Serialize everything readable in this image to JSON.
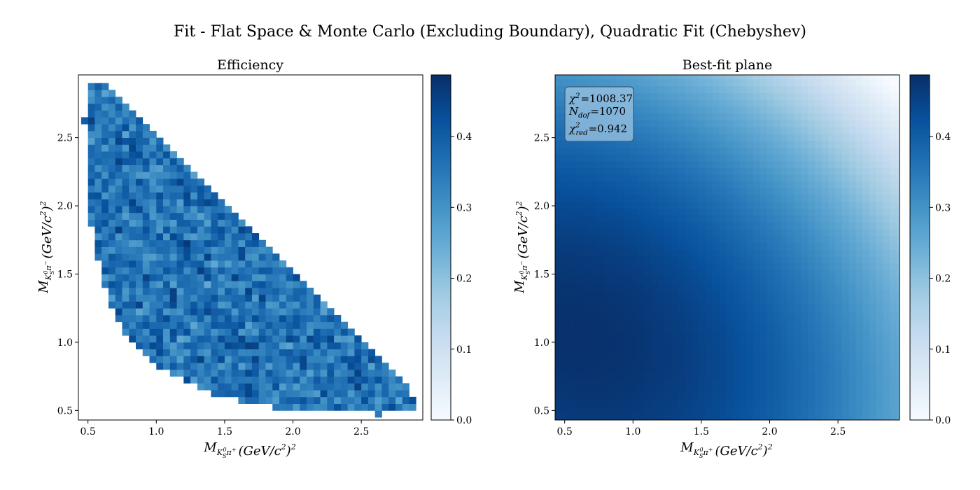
{
  "figure": {
    "suptitle": "Fit - Flat Space & Monte Carlo (Excluding Boundary), Quadratic Fit (Chebyshev)"
  },
  "chart_data": [
    {
      "type": "heatmap",
      "title": "Efficiency",
      "xlabel_base": "M",
      "xlabel_sub": "K",
      "xlabel_subsub": "S",
      "xlabel_subsup": "0",
      "xlabel_subtail": "π",
      "xlabel_subtailsup": "+",
      "xlabel_unit": "(GeV/c",
      "xlabel_unitsup": "2",
      "xlabel_unitclose": ")",
      "xlabel_outsup": "2",
      "ylabel_base": "M",
      "ylabel_sub": "K",
      "ylabel_subsub": "S",
      "ylabel_subsup": "0",
      "ylabel_subtail": "π",
      "ylabel_subtailsup": "−",
      "ylabel_unit": "(GeV/c",
      "ylabel_unitsup": "2",
      "ylabel_unitclose": ")",
      "ylabel_outsup": "2",
      "xlim": [
        0.43,
        2.95
      ],
      "ylim": [
        0.43,
        2.96
      ],
      "xticks": [
        0.5,
        1.0,
        1.5,
        2.0,
        2.5
      ],
      "xtick_labels": [
        "0.5",
        "1.0",
        "1.5",
        "2.0",
        "2.5"
      ],
      "yticks": [
        0.5,
        1.0,
        1.5,
        2.0,
        2.5
      ],
      "ytick_labels": [
        "0.5",
        "1.0",
        "1.5",
        "2.0",
        "2.5"
      ],
      "grid": false,
      "colormap": "Blues",
      "vmin": 0.0,
      "vmax": 0.487,
      "colorbar_ticks": [
        0.0,
        0.1,
        0.2,
        0.3,
        0.4
      ],
      "colorbar_tick_labels": [
        "0.0",
        "0.1",
        "0.2",
        "0.3",
        "0.4"
      ],
      "bin_width": 0.05,
      "x_first_bin_center": 0.475,
      "y_first_bin_center": 0.475,
      "mean_efficiency": 0.36,
      "row_x_ranges": [
        {
          "y": 0.475,
          "xmin": 2.6,
          "xmax": 2.65
        },
        {
          "y": 0.525,
          "xmin": 1.85,
          "xmax": 2.9
        },
        {
          "y": 0.575,
          "xmin": 1.6,
          "xmax": 2.9
        },
        {
          "y": 0.625,
          "xmin": 1.4,
          "xmax": 2.85
        },
        {
          "y": 0.675,
          "xmin": 1.3,
          "xmax": 2.85
        },
        {
          "y": 0.725,
          "xmin": 1.2,
          "xmax": 2.8
        },
        {
          "y": 0.775,
          "xmin": 1.1,
          "xmax": 2.75
        },
        {
          "y": 0.825,
          "xmin": 1.0,
          "xmax": 2.7
        },
        {
          "y": 0.875,
          "xmin": 0.95,
          "xmax": 2.65
        },
        {
          "y": 0.925,
          "xmin": 0.9,
          "xmax": 2.6
        },
        {
          "y": 0.975,
          "xmin": 0.85,
          "xmax": 2.55
        },
        {
          "y": 1.025,
          "xmin": 0.8,
          "xmax": 2.5
        },
        {
          "y": 1.075,
          "xmin": 0.75,
          "xmax": 2.45
        },
        {
          "y": 1.125,
          "xmin": 0.75,
          "xmax": 2.4
        },
        {
          "y": 1.175,
          "xmin": 0.7,
          "xmax": 2.35
        },
        {
          "y": 1.225,
          "xmin": 0.7,
          "xmax": 2.3
        },
        {
          "y": 1.275,
          "xmin": 0.65,
          "xmax": 2.25
        },
        {
          "y": 1.325,
          "xmin": 0.65,
          "xmax": 2.2
        },
        {
          "y": 1.375,
          "xmin": 0.65,
          "xmax": 2.15
        },
        {
          "y": 1.425,
          "xmin": 0.6,
          "xmax": 2.1
        },
        {
          "y": 1.475,
          "xmin": 0.6,
          "xmax": 2.05
        },
        {
          "y": 1.525,
          "xmin": 0.6,
          "xmax": 2.0
        },
        {
          "y": 1.575,
          "xmin": 0.6,
          "xmax": 1.95
        },
        {
          "y": 1.625,
          "xmin": 0.55,
          "xmax": 1.9
        },
        {
          "y": 1.675,
          "xmin": 0.55,
          "xmax": 1.85
        },
        {
          "y": 1.725,
          "xmin": 0.55,
          "xmax": 1.8
        },
        {
          "y": 1.775,
          "xmin": 0.55,
          "xmax": 1.75
        },
        {
          "y": 1.825,
          "xmin": 0.55,
          "xmax": 1.7
        },
        {
          "y": 1.875,
          "xmin": 0.5,
          "xmax": 1.65
        },
        {
          "y": 1.925,
          "xmin": 0.5,
          "xmax": 1.6
        },
        {
          "y": 1.975,
          "xmin": 0.5,
          "xmax": 1.55
        },
        {
          "y": 2.025,
          "xmin": 0.5,
          "xmax": 1.5
        },
        {
          "y": 2.075,
          "xmin": 0.5,
          "xmax": 1.45
        },
        {
          "y": 2.125,
          "xmin": 0.5,
          "xmax": 1.4
        },
        {
          "y": 2.175,
          "xmin": 0.5,
          "xmax": 1.35
        },
        {
          "y": 2.225,
          "xmin": 0.5,
          "xmax": 1.3
        },
        {
          "y": 2.275,
          "xmin": 0.5,
          "xmax": 1.25
        },
        {
          "y": 2.325,
          "xmin": 0.5,
          "xmax": 1.2
        },
        {
          "y": 2.375,
          "xmin": 0.5,
          "xmax": 1.15
        },
        {
          "y": 2.425,
          "xmin": 0.5,
          "xmax": 1.1
        },
        {
          "y": 2.475,
          "xmin": 0.5,
          "xmax": 1.05
        },
        {
          "y": 2.525,
          "xmin": 0.5,
          "xmax": 1.0
        },
        {
          "y": 2.575,
          "xmin": 0.5,
          "xmax": 0.95
        },
        {
          "y": 2.625,
          "xmin": 0.45,
          "xmax": 0.9
        },
        {
          "y": 2.675,
          "xmin": 0.5,
          "xmax": 0.85
        },
        {
          "y": 2.725,
          "xmin": 0.5,
          "xmax": 0.8
        },
        {
          "y": 2.775,
          "xmin": 0.5,
          "xmax": 0.75
        },
        {
          "y": 2.825,
          "xmin": 0.5,
          "xmax": 0.7
        },
        {
          "y": 2.875,
          "xmin": 0.5,
          "xmax": 0.65
        }
      ]
    },
    {
      "type": "heatmap",
      "title": "Best-fit plane",
      "xlabel_base": "M",
      "xlabel_sub": "K",
      "xlabel_subsub": "S",
      "xlabel_subsup": "0",
      "xlabel_subtail": "π",
      "xlabel_subtailsup": "+",
      "xlabel_unit": "(GeV/c",
      "xlabel_unitsup": "2",
      "xlabel_unitclose": ")",
      "xlabel_outsup": "2",
      "ylabel_base": "M",
      "ylabel_sub": "K",
      "ylabel_subsub": "S",
      "ylabel_subsup": "0",
      "ylabel_subtail": "π",
      "ylabel_subtailsup": "−",
      "ylabel_unit": "(GeV/c",
      "ylabel_unitsup": "2",
      "ylabel_unitclose": ")",
      "ylabel_outsup": "2",
      "xlim": [
        0.43,
        2.95
      ],
      "ylim": [
        0.43,
        2.96
      ],
      "xticks": [
        0.5,
        1.0,
        1.5,
        2.0,
        2.5
      ],
      "xtick_labels": [
        "0.5",
        "1.0",
        "1.5",
        "2.0",
        "2.5"
      ],
      "yticks": [
        0.5,
        1.0,
        1.5,
        2.0,
        2.5
      ],
      "ytick_labels": [
        "0.5",
        "1.0",
        "1.5",
        "2.0",
        "2.5"
      ],
      "grid": false,
      "colormap": "Blues",
      "vmin": 0.0,
      "vmax": 0.487,
      "colorbar_ticks": [
        0.0,
        0.1,
        0.2,
        0.3,
        0.4
      ],
      "colorbar_tick_labels": [
        "0.0",
        "0.1",
        "0.2",
        "0.3",
        "0.4"
      ],
      "bin_width": 0.05,
      "surface_samples": [
        {
          "x": 0.45,
          "y": 0.45,
          "z": 0.455
        },
        {
          "x": 0.8,
          "y": 1.0,
          "z": 0.487
        },
        {
          "x": 1.5,
          "y": 0.5,
          "z": 0.46
        },
        {
          "x": 2.0,
          "y": 0.5,
          "z": 0.41
        },
        {
          "x": 2.9,
          "y": 0.5,
          "z": 0.26
        },
        {
          "x": 0.45,
          "y": 2.9,
          "z": 0.32
        },
        {
          "x": 1.5,
          "y": 2.0,
          "z": 0.38
        },
        {
          "x": 2.0,
          "y": 1.5,
          "z": 0.37
        },
        {
          "x": 1.5,
          "y": 2.9,
          "z": 0.23
        },
        {
          "x": 2.9,
          "y": 1.5,
          "z": 0.24
        },
        {
          "x": 2.9,
          "y": 2.9,
          "z": 0.0
        }
      ],
      "stats_box": {
        "chi2_symbol": "χ",
        "chi2_sup": "2",
        "chi2_value": "1008.37",
        "ndof_symbol": "N",
        "ndof_sub": "dof",
        "ndof_value": "1070",
        "chi2red_symbol": "χ",
        "chi2red_sup": "2",
        "chi2red_sub": "red",
        "chi2red_value": "0.942",
        "equals": "=",
        "box_color": "#9ec4e2"
      }
    }
  ]
}
